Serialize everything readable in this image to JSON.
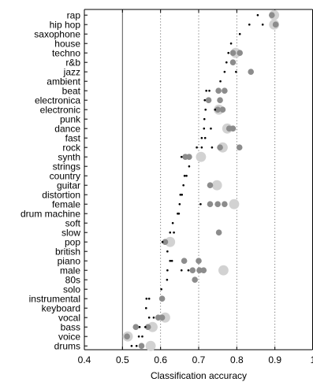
{
  "chart_data": {
    "type": "scatter",
    "title": "",
    "xlabel": "Classification accuracy",
    "ylabel": "",
    "xlim": [
      0.4,
      1.0
    ],
    "xticks": [
      0.4,
      0.5,
      0.6,
      0.7,
      0.8,
      0.9,
      1.0
    ],
    "xtick_labels": [
      "0.4",
      "0.5",
      "0.6",
      "0.7",
      "0.8",
      "0.9",
      "1"
    ],
    "reference_lines": [
      {
        "x": 0.5,
        "style": "solid"
      },
      {
        "x": 0.6,
        "style": "dotted"
      },
      {
        "x": 0.7,
        "style": "dotted"
      },
      {
        "x": 0.8,
        "style": "dotted"
      },
      {
        "x": 0.9,
        "style": "dotted"
      }
    ],
    "grid": false,
    "legend": "none",
    "categories": [
      "rap",
      "hip hop",
      "saxophone",
      "house",
      "techno",
      "r&b",
      "jazz",
      "ambient",
      "beat",
      "electronica",
      "electronic",
      "punk",
      "dance",
      "fast",
      "rock",
      "synth",
      "strings",
      "country",
      "guitar",
      "distortion",
      "female",
      "drum machine",
      "soft",
      "slow",
      "pop",
      "british",
      "piano",
      "male",
      "80s",
      "solo",
      "instrumental",
      "keyboard",
      "vocal",
      "bass",
      "voice",
      "drums"
    ],
    "series": [
      {
        "marker": "small-dot",
        "color": "#000000",
        "values": [
          0.855,
          0.833,
          0.808,
          0.785,
          0.778,
          0.773,
          0.768,
          0.757,
          0.72,
          0.716,
          0.718,
          0.715,
          0.714,
          0.708,
          0.695,
          0.655,
          0.675,
          0.663,
          0.66,
          0.652,
          0.65,
          0.645,
          0.632,
          0.625,
          0.605,
          0.618,
          0.625,
          0.618,
          0.617,
          0.602,
          0.563,
          0.562,
          0.57,
          0.545,
          0.543,
          0.524
        ]
      },
      {
        "marker": "small-dot",
        "color": "#000000",
        "values": [
          null,
          0.868,
          null,
          null,
          null,
          null,
          0.798,
          null,
          0.728,
          null,
          0.743,
          null,
          0.732,
          0.717,
          0.708,
          null,
          null,
          0.668,
          null,
          0.656,
          0.705,
          0.648,
          null,
          0.635,
          null,
          null,
          0.63,
          0.655,
          null,
          null,
          0.57,
          null,
          0.582,
          0.56,
          0.552,
          0.537
        ]
      },
      {
        "marker": "small-dot",
        "color": "#000000",
        "values": [
          null,
          null,
          null,
          null,
          null,
          null,
          null,
          null,
          null,
          null,
          null,
          null,
          null,
          null,
          0.735,
          null,
          null,
          null,
          null,
          null,
          null,
          null,
          null,
          null,
          null,
          null,
          null,
          0.673,
          null,
          null,
          null,
          null,
          null,
          null,
          null,
          null
        ]
      },
      {
        "marker": "medium-circle",
        "color": "#8c8c8c",
        "values": [
          0.892,
          0.902,
          null,
          null,
          0.79,
          0.79,
          0.837,
          null,
          0.752,
          0.726,
          0.75,
          null,
          0.78,
          null,
          0.756,
          0.665,
          null,
          null,
          0.73,
          null,
          0.73,
          null,
          null,
          0.753,
          0.612,
          null,
          0.662,
          0.702,
          0.69,
          null,
          0.604,
          null,
          0.594,
          0.535,
          0.512,
          0.55
        ]
      },
      {
        "marker": "medium-circle",
        "color": "#8c8c8c",
        "values": [
          null,
          null,
          null,
          null,
          null,
          null,
          null,
          null,
          0.768,
          0.756,
          0.763,
          null,
          0.79,
          null,
          0.807,
          0.675,
          null,
          null,
          null,
          null,
          0.75,
          null,
          null,
          null,
          null,
          null,
          0.7,
          0.684,
          null,
          null,
          null,
          null,
          0.604,
          0.567,
          null,
          null
        ]
      },
      {
        "marker": "medium-circle",
        "color": "#8c8c8c",
        "values": [
          null,
          null,
          null,
          null,
          0.808,
          null,
          null,
          null,
          null,
          null,
          null,
          null,
          null,
          null,
          null,
          null,
          null,
          null,
          null,
          null,
          0.768,
          null,
          null,
          null,
          null,
          null,
          null,
          0.713,
          null,
          null,
          null,
          null,
          null,
          null,
          null,
          null
        ]
      },
      {
        "marker": "large-circle",
        "color": "#d2d2d2",
        "values": [
          0.898,
          0.898,
          null,
          null,
          0.797,
          null,
          null,
          null,
          null,
          null,
          0.753,
          null,
          0.775,
          null,
          0.763,
          0.706,
          null,
          null,
          0.748,
          null,
          0.793,
          null,
          null,
          null,
          0.625,
          null,
          null,
          0.765,
          null,
          null,
          null,
          null,
          0.612,
          0.579,
          0.514,
          0.574
        ]
      }
    ]
  }
}
